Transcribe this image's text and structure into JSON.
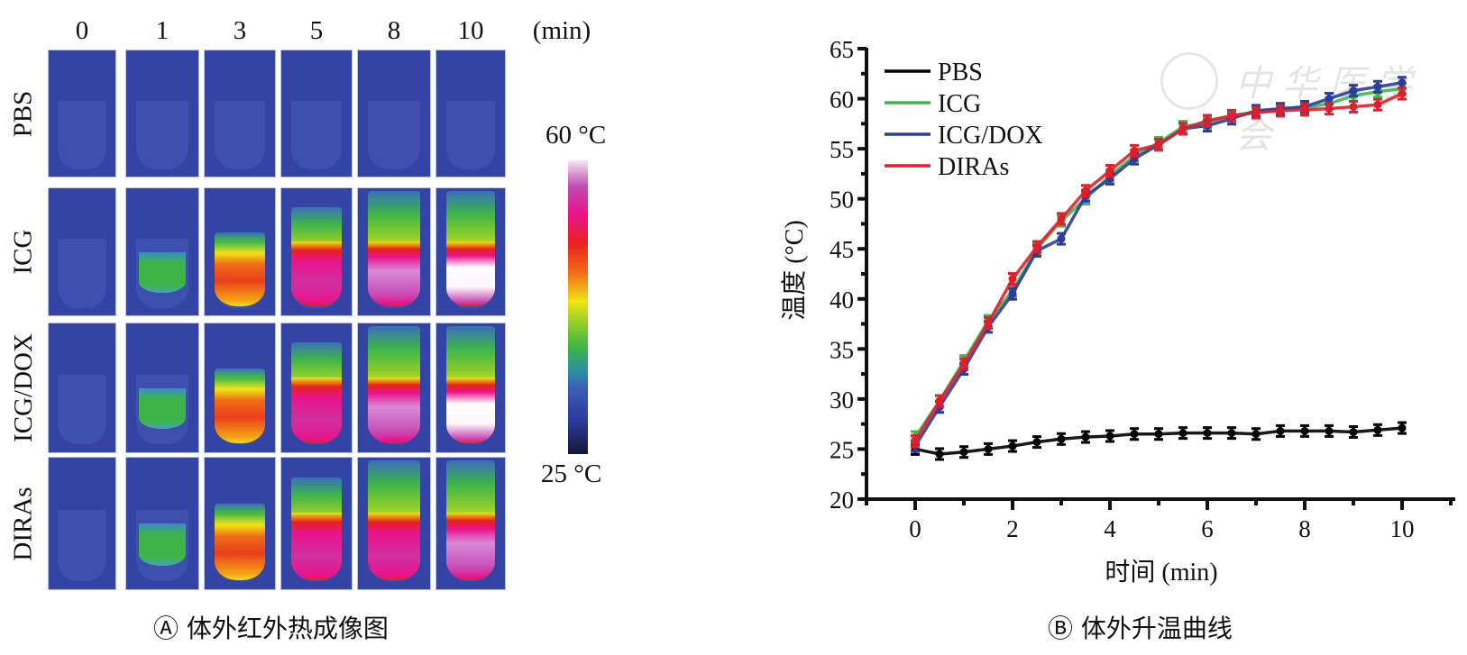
{
  "panel_a": {
    "time_labels": [
      "0",
      "1",
      "3",
      "5",
      "8",
      "10"
    ],
    "time_unit": "(min)",
    "row_labels": [
      "PBS",
      "ICG",
      "ICG/DOX",
      "DIRAs"
    ],
    "heat_levels": [
      [
        0,
        0,
        0,
        0,
        0,
        0
      ],
      [
        0,
        0.35,
        0.65,
        0.8,
        0.9,
        1.0
      ],
      [
        0,
        0.3,
        0.62,
        0.8,
        0.9,
        1.0
      ],
      [
        0,
        0.35,
        0.68,
        0.8,
        0.86,
        0.95
      ]
    ],
    "colorbar": {
      "max_label": "60 °C",
      "min_label": "25 °C",
      "max": 60,
      "min": 25
    },
    "caption": "Ⓐ 体外红外热成像图"
  },
  "panel_b": {
    "caption": "Ⓑ 体外升温曲线",
    "watermark": "中华医学会"
  },
  "chart_data": {
    "type": "line",
    "title": "",
    "xlabel": "时间 (min)",
    "ylabel": "温度 (°C)",
    "xlim": [
      -1,
      11
    ],
    "ylim": [
      20,
      65
    ],
    "xticks": [
      0,
      2,
      4,
      6,
      8,
      10
    ],
    "yticks": [
      20,
      25,
      30,
      35,
      40,
      45,
      50,
      55,
      60,
      65
    ],
    "legend_position": "top-left",
    "grid": false,
    "x": [
      0,
      0.5,
      1,
      1.5,
      2,
      2.5,
      3,
      3.5,
      4,
      4.5,
      5,
      5.5,
      6,
      6.5,
      7,
      7.5,
      8,
      8.5,
      9,
      9.5,
      10
    ],
    "series": [
      {
        "name": "PBS",
        "color": "#000000",
        "values": [
          25.0,
          24.5,
          24.7,
          25.0,
          25.3,
          25.7,
          26.0,
          26.2,
          26.3,
          26.5,
          26.5,
          26.6,
          26.6,
          26.6,
          26.5,
          26.8,
          26.8,
          26.8,
          26.7,
          26.9,
          27.1
        ]
      },
      {
        "name": "ICG",
        "color": "#3cb84a",
        "values": [
          26.2,
          29.8,
          33.8,
          37.8,
          40.8,
          45.0,
          47.8,
          50.0,
          52.3,
          54.3,
          55.6,
          57.2,
          57.6,
          58.3,
          58.7,
          58.9,
          59.1,
          59.5,
          60.3,
          60.7,
          61.0
        ]
      },
      {
        "name": "ICG/DOX",
        "color": "#2c3c9c",
        "values": [
          25.3,
          29.2,
          33.0,
          37.2,
          40.5,
          44.8,
          46.0,
          50.3,
          52.0,
          54.0,
          55.4,
          57.0,
          57.3,
          58.0,
          58.8,
          59.0,
          59.2,
          60.0,
          60.8,
          61.2,
          61.6
        ]
      },
      {
        "name": "DIRAs",
        "color": "#e21e2c",
        "values": [
          25.8,
          29.8,
          33.5,
          37.6,
          42.0,
          45.2,
          48.0,
          50.8,
          52.8,
          54.8,
          55.4,
          57.0,
          57.8,
          58.3,
          58.6,
          58.8,
          58.9,
          59.0,
          59.2,
          59.4,
          60.5
        ]
      }
    ]
  }
}
